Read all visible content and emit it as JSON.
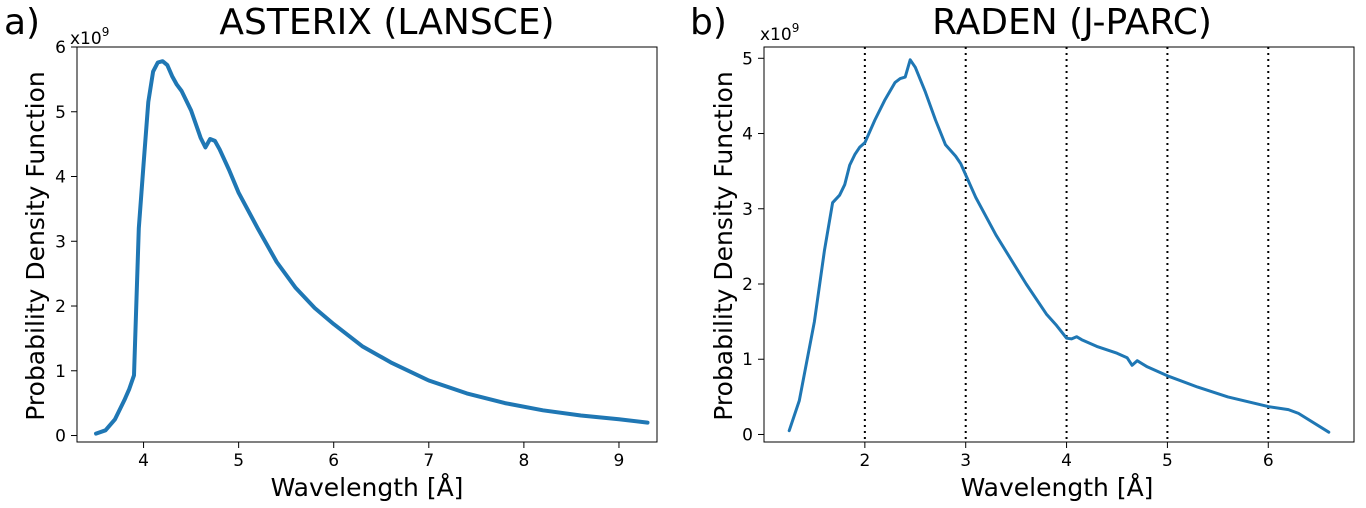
{
  "panels": [
    {
      "letter": "a)",
      "title": "ASTERIX (LANSCE)",
      "multiplier_base": "x10",
      "multiplier_exp": "9"
    },
    {
      "letter": "b)",
      "title": "RADEN (J-PARC)",
      "multiplier_base": "x10",
      "multiplier_exp": "9"
    }
  ],
  "chart_data": [
    {
      "type": "line",
      "title": "ASTERIX (LANSCE)",
      "xlabel": "Wavelength [Å]",
      "ylabel": "Probability Density Function",
      "y_multiplier": "x10^9",
      "xlim": [
        3.3,
        9.4
      ],
      "ylim": [
        -0.1,
        6.0
      ],
      "xticks": [
        4,
        5,
        6,
        7,
        8,
        9
      ],
      "yticks": [
        0,
        1,
        2,
        3,
        4,
        5,
        6
      ],
      "grid": false,
      "vlines": [],
      "series": [
        {
          "color": "#1f77b4",
          "x": [
            3.5,
            3.6,
            3.7,
            3.8,
            3.85,
            3.9,
            3.95,
            4.0,
            4.05,
            4.1,
            4.15,
            4.2,
            4.25,
            4.3,
            4.35,
            4.4,
            4.5,
            4.6,
            4.65,
            4.7,
            4.75,
            4.8,
            4.9,
            5.0,
            5.2,
            5.4,
            5.6,
            5.8,
            6.0,
            6.3,
            6.6,
            7.0,
            7.4,
            7.8,
            8.2,
            8.6,
            9.0,
            9.3
          ],
          "y": [
            0.03,
            0.08,
            0.25,
            0.55,
            0.72,
            0.93,
            3.2,
            4.2,
            5.15,
            5.62,
            5.76,
            5.78,
            5.72,
            5.55,
            5.42,
            5.32,
            5.02,
            4.6,
            4.45,
            4.58,
            4.55,
            4.42,
            4.1,
            3.75,
            3.2,
            2.68,
            2.28,
            1.97,
            1.72,
            1.38,
            1.13,
            0.85,
            0.65,
            0.5,
            0.39,
            0.31,
            0.25,
            0.2
          ]
        }
      ]
    },
    {
      "type": "line",
      "title": "RADEN (J-PARC)",
      "xlabel": "Wavelength [Å]",
      "ylabel": "Probability Density Function",
      "y_multiplier": "x10^9",
      "xlim": [
        1.0,
        6.85
      ],
      "ylim": [
        -0.1,
        5.15
      ],
      "xticks": [
        2,
        3,
        4,
        5,
        6
      ],
      "yticks": [
        0,
        1,
        2,
        3,
        4,
        5
      ],
      "grid": false,
      "vlines": [
        2,
        3,
        4,
        5,
        6
      ],
      "series": [
        {
          "color": "#1f77b4",
          "x": [
            1.25,
            1.35,
            1.5,
            1.6,
            1.68,
            1.75,
            1.8,
            1.85,
            1.9,
            1.95,
            2.0,
            2.1,
            2.2,
            2.3,
            2.35,
            2.4,
            2.45,
            2.5,
            2.6,
            2.7,
            2.8,
            2.9,
            2.95,
            3.0,
            3.1,
            3.3,
            3.6,
            3.8,
            3.9,
            4.0,
            4.05,
            4.1,
            4.15,
            4.3,
            4.5,
            4.6,
            4.65,
            4.7,
            4.8,
            5.0,
            5.3,
            5.6,
            6.0,
            6.2,
            6.3,
            6.6
          ],
          "y": [
            0.05,
            0.45,
            1.5,
            2.45,
            3.08,
            3.18,
            3.32,
            3.58,
            3.72,
            3.82,
            3.88,
            4.18,
            4.45,
            4.68,
            4.73,
            4.75,
            4.98,
            4.88,
            4.55,
            4.18,
            3.85,
            3.7,
            3.6,
            3.45,
            3.15,
            2.65,
            2.0,
            1.6,
            1.45,
            1.28,
            1.27,
            1.3,
            1.26,
            1.17,
            1.08,
            1.02,
            0.92,
            0.98,
            0.9,
            0.78,
            0.63,
            0.5,
            0.37,
            0.33,
            0.28,
            0.03
          ]
        }
      ]
    }
  ]
}
